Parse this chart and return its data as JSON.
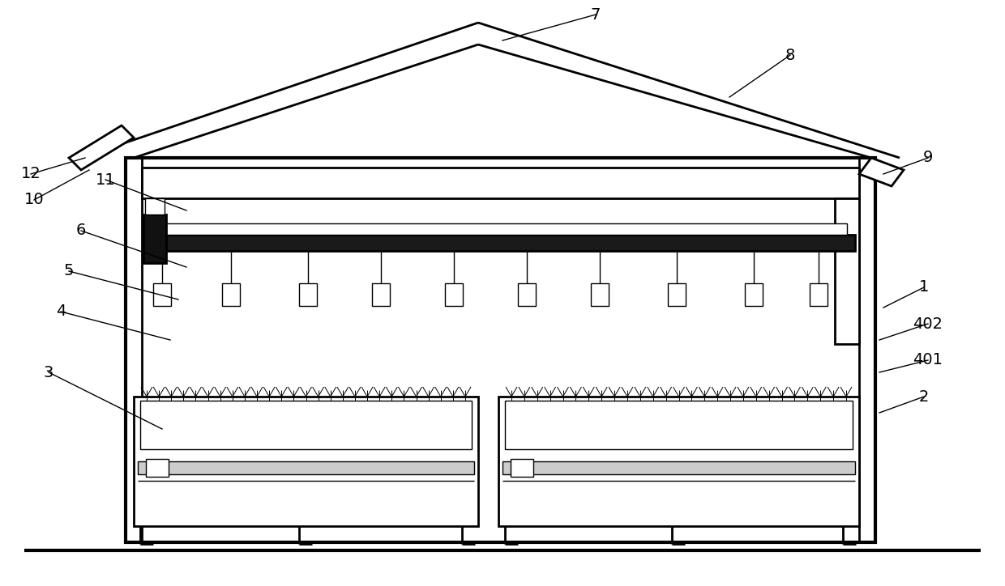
{
  "bg_color": "#ffffff",
  "lw_main": 2.0,
  "lw_thin": 1.0,
  "lw_thick": 3.0,
  "lw_ultra": 0.7,
  "fig_width": 12.4,
  "fig_height": 7.24
}
